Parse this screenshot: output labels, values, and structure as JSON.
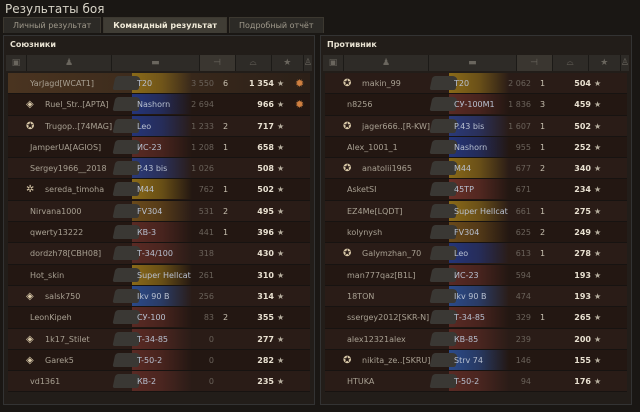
{
  "window": {
    "title": "Результаты боя"
  },
  "tabs": [
    {
      "label": "Личный результат"
    },
    {
      "label": "Командный результат",
      "active": true
    },
    {
      "label": "Подробный отчёт"
    }
  ],
  "nation_colors": {
    "usa": "#8a6a18",
    "germany": "#24357a",
    "ussr": "#5a2a24",
    "uk": "#6a4a1a",
    "france": "#2a3a7a",
    "sweden": "#2a4a8a",
    "china": "#6a2a18",
    "poland": "#6a3028",
    "czech": "#3a4a6a",
    "none": "#302a26"
  },
  "allies": {
    "title": "Союзники",
    "columns": [
      "platoon-icon",
      "player-icon",
      "tank-icon",
      "damage-icon",
      "frags-icon",
      "xp-icon",
      "medal-icon"
    ],
    "rows": [
      {
        "name": "YarJagd[WCAT1]",
        "tank": "T20",
        "nation": "usa",
        "damage": "3 550",
        "frags": "6",
        "xp": "1 354",
        "medal": "medal-icon",
        "self": true
      },
      {
        "name": "Ruel_Str..[APTA]",
        "tank": "Nashorn",
        "nation": "germany",
        "damage": "2 694",
        "frags": "",
        "xp": "966",
        "badge": "platoon-icon",
        "medal": "medal-icon"
      },
      {
        "name": "Trugop..[74MAG]",
        "tank": "Leo",
        "nation": "germany",
        "damage": "1 233",
        "frags": "2",
        "xp": "717",
        "badge": "rank-icon"
      },
      {
        "name": "JamperUA[AGIOS]",
        "tank": "ИС-23",
        "nation": "ussr",
        "damage": "1 208",
        "frags": "1",
        "xp": "658"
      },
      {
        "name": "Sergey1966__2018",
        "tank": "P.43 bis",
        "nation": "france",
        "damage": "1 026",
        "frags": "",
        "xp": "508"
      },
      {
        "name": "sereda_timoha",
        "tank": "M44",
        "nation": "usa",
        "damage": "762",
        "frags": "1",
        "xp": "502",
        "badge": "star-badge-icon"
      },
      {
        "name": "Nirvana1000",
        "tank": "FV304",
        "nation": "uk",
        "damage": "531",
        "frags": "2",
        "xp": "495"
      },
      {
        "name": "qwerty13222",
        "tank": "КВ-3",
        "nation": "ussr",
        "damage": "441",
        "frags": "1",
        "xp": "396"
      },
      {
        "name": "dordzh78[CBH08]",
        "tank": "Т-34/100",
        "nation": "ussr",
        "damage": "318",
        "frags": "",
        "xp": "430"
      },
      {
        "name": "Hot_skin",
        "tank": "Super Hellcat",
        "nation": "usa",
        "damage": "261",
        "frags": "",
        "xp": "310"
      },
      {
        "name": "salsk750",
        "tank": "Ikv 90 B",
        "nation": "sweden",
        "damage": "256",
        "frags": "",
        "xp": "314",
        "badge": "platoon-icon"
      },
      {
        "name": "LeonKipeh",
        "tank": "СУ-100",
        "nation": "ussr",
        "damage": "83",
        "frags": "2",
        "xp": "355"
      },
      {
        "name": "1k17_Stilet",
        "tank": "Т-34-85",
        "nation": "ussr",
        "damage": "0",
        "frags": "",
        "xp": "277",
        "badge": "platoon-icon"
      },
      {
        "name": "Garek5",
        "tank": "T-50-2",
        "nation": "ussr",
        "damage": "0",
        "frags": "",
        "xp": "282",
        "badge": "platoon-icon"
      },
      {
        "name": "vd1361",
        "tank": "КВ-2",
        "nation": "ussr",
        "damage": "0",
        "frags": "",
        "xp": "235"
      }
    ]
  },
  "enemies": {
    "title": "Противник",
    "columns": [
      "platoon-icon",
      "player-icon",
      "tank-icon",
      "damage-icon",
      "frags-icon",
      "xp-icon",
      "medal-icon"
    ],
    "rows": [
      {
        "name": "makin_99",
        "tank": "T20",
        "nation": "usa",
        "damage": "2 062",
        "frags": "1",
        "xp": "504",
        "badge": "rank-icon"
      },
      {
        "name": "n8256",
        "tank": "СУ-100М1",
        "nation": "ussr",
        "damage": "1 836",
        "frags": "3",
        "xp": "459"
      },
      {
        "name": "jager666..[R-KW]",
        "tank": "P.43 bis",
        "nation": "france",
        "damage": "1 607",
        "frags": "1",
        "xp": "502",
        "badge": "rank-icon"
      },
      {
        "name": "Alex_1001_1",
        "tank": "Nashorn",
        "nation": "germany",
        "damage": "955",
        "frags": "1",
        "xp": "252"
      },
      {
        "name": "anatolii1965",
        "tank": "M44",
        "nation": "usa",
        "damage": "677",
        "frags": "2",
        "xp": "340",
        "badge": "rank-icon"
      },
      {
        "name": "AsketSI",
        "tank": "45TP",
        "nation": "poland",
        "damage": "671",
        "frags": "",
        "xp": "234"
      },
      {
        "name": "EZ4Me[LQDT]",
        "tank": "Super Hellcat",
        "nation": "usa",
        "damage": "661",
        "frags": "1",
        "xp": "275"
      },
      {
        "name": "kolynysh",
        "tank": "FV304",
        "nation": "uk",
        "damage": "625",
        "frags": "2",
        "xp": "249"
      },
      {
        "name": "Galymzhan_70",
        "tank": "Leo",
        "nation": "germany",
        "damage": "613",
        "frags": "1",
        "xp": "278",
        "badge": "rank-icon"
      },
      {
        "name": "man777qaz[B1L]",
        "tank": "ИС-23",
        "nation": "ussr",
        "damage": "594",
        "frags": "",
        "xp": "193"
      },
      {
        "name": "18TON",
        "tank": "Ikv 90 B",
        "nation": "sweden",
        "damage": "474",
        "frags": "",
        "xp": "193"
      },
      {
        "name": "ssergey2012[SKR-N]",
        "tank": "Т-34-85",
        "nation": "ussr",
        "damage": "329",
        "frags": "1",
        "xp": "265"
      },
      {
        "name": "alex12321alex",
        "tank": "КВ-85",
        "nation": "ussr",
        "damage": "239",
        "frags": "",
        "xp": "200"
      },
      {
        "name": "nikita_ze..[SKRU]",
        "tank": "Strv 74",
        "nation": "sweden",
        "damage": "146",
        "frags": "",
        "xp": "155",
        "badge": "rank-icon"
      },
      {
        "name": "HTUKA",
        "tank": "T-50-2",
        "nation": "ussr",
        "damage": "94",
        "frags": "",
        "xp": "176"
      }
    ]
  }
}
